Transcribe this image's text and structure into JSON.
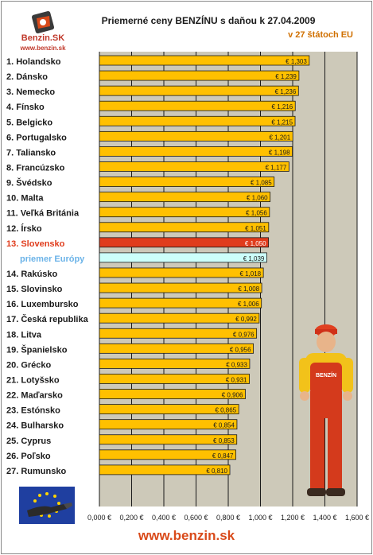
{
  "header": {
    "title": "Priemerné ceny BENZÍNU s daňou k 27.04.2009",
    "subtitle": "v 27 štátoch EU",
    "logo_text": "Benzin.SK",
    "logo_url": "www.benzin.sk"
  },
  "footer": {
    "url": "www.benzin.sk"
  },
  "colors": {
    "bar": "#ffc000",
    "bar_highlight": "#e03c1c",
    "bar_average": "#ccfffa",
    "label_highlight": "#e03c1c",
    "label_average": "#6bb3e8",
    "plot_bg": "#cdc9b9"
  },
  "icons": [
    "benzin-logo-icon",
    "eu-flag-fuel-nozzle-icon",
    "mechanic-mascot-icon"
  ],
  "chart_data": {
    "type": "bar",
    "orientation": "horizontal",
    "title": "Priemerné ceny BENZÍNU s daňou k 27.04.2009",
    "subtitle": "v 27 štátoch EU",
    "xlim": [
      0,
      1.6
    ],
    "x_ticks": [
      "0,000 €",
      "0,200 €",
      "0,400 €",
      "0,600 €",
      "0,800 €",
      "1,000 €",
      "1,200 €",
      "1,400 €",
      "1,600 €"
    ],
    "grid": "vertical",
    "categories": [
      "1. Holandsko",
      "2. Dánsko",
      "3. Nemecko",
      "4. Fínsko",
      "5. Belgicko",
      "6. Portugalsko",
      "7. Taliansko",
      "8. Francúzsko",
      "9. Švédsko",
      "10. Malta",
      "11. Veľká Británia",
      "12. Írsko",
      "13. Slovensko",
      "priemer Európy",
      "14. Rakúsko",
      "15. Slovinsko",
      "16. Luxembursko",
      "17. Česká republika",
      "18. Litva",
      "19. Španielsko",
      "20. Grécko",
      "21. Lotyšsko",
      "22. Maďarsko",
      "23. Estónsko",
      "24. Bulharsko",
      "25. Cyprus",
      "26. Poľsko",
      "27. Rumunsko"
    ],
    "values": [
      1.303,
      1.239,
      1.236,
      1.216,
      1.215,
      1.201,
      1.198,
      1.177,
      1.085,
      1.06,
      1.056,
      1.051,
      1.05,
      1.039,
      1.018,
      1.008,
      1.006,
      0.992,
      0.976,
      0.956,
      0.933,
      0.931,
      0.906,
      0.865,
      0.854,
      0.853,
      0.847,
      0.81
    ],
    "value_labels": [
      "€ 1,303",
      "€ 1,239",
      "€ 1,236",
      "€ 1,216",
      "€ 1,215",
      "€ 1,201",
      "€ 1,198",
      "€ 1,177",
      "€ 1,085",
      "€ 1,060",
      "€ 1,056",
      "€ 1,051",
      "€ 1,050",
      "€ 1,039",
      "€ 1,018",
      "€ 1,008",
      "€ 1,006",
      "€ 0,992",
      "€ 0,976",
      "€ 0,956",
      "€ 0,933",
      "€ 0,931",
      "€ 0,906",
      "€ 0,865",
      "€ 0,854",
      "€ 0,853",
      "€ 0,847",
      "€ 0,810"
    ],
    "highlight_index": 12,
    "average_index": 13
  }
}
